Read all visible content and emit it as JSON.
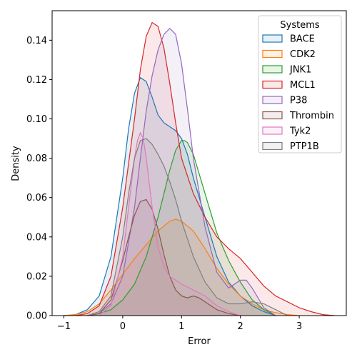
{
  "chart_data": {
    "type": "area",
    "xlabel": "Error",
    "ylabel": "Density",
    "xlim": [
      -1.2,
      3.8
    ],
    "ylim": [
      0,
      0.155
    ],
    "xticks": [
      -1,
      0,
      1,
      2,
      3
    ],
    "yticks": [
      0.0,
      0.02,
      0.04,
      0.06,
      0.08,
      0.1,
      0.12,
      0.14
    ],
    "ytick_labels": [
      "0.00",
      "0.02",
      "0.04",
      "0.06",
      "0.08",
      "0.10",
      "0.12",
      "0.14"
    ],
    "grid": false,
    "legend": {
      "title": "Systems",
      "placement": "top-right"
    },
    "series": [
      {
        "name": "BACE",
        "color": "#1f77b4",
        "x": [
          -1.0,
          -0.8,
          -0.6,
          -0.4,
          -0.2,
          0.0,
          0.1,
          0.2,
          0.3,
          0.4,
          0.5,
          0.6,
          0.7,
          0.8,
          0.9,
          1.0,
          1.1,
          1.2,
          1.4,
          1.6,
          1.8,
          2.0,
          2.2,
          2.4,
          2.6
        ],
        "y": [
          0.0,
          0.0005,
          0.003,
          0.01,
          0.03,
          0.07,
          0.095,
          0.113,
          0.121,
          0.119,
          0.111,
          0.102,
          0.098,
          0.096,
          0.094,
          0.09,
          0.082,
          0.07,
          0.05,
          0.03,
          0.017,
          0.01,
          0.005,
          0.002,
          0.0
        ]
      },
      {
        "name": "CDK2",
        "color": "#ff7f0e",
        "x": [
          -1.0,
          -0.8,
          -0.6,
          -0.4,
          -0.2,
          0.0,
          0.2,
          0.4,
          0.6,
          0.8,
          0.9,
          1.0,
          1.2,
          1.4,
          1.6,
          1.8,
          2.0,
          2.2,
          2.4,
          2.6,
          2.8,
          3.0
        ],
        "y": [
          0.0,
          0.0005,
          0.002,
          0.006,
          0.013,
          0.021,
          0.029,
          0.036,
          0.043,
          0.048,
          0.049,
          0.048,
          0.043,
          0.034,
          0.024,
          0.016,
          0.01,
          0.006,
          0.003,
          0.0015,
          0.0005,
          0.0
        ]
      },
      {
        "name": "JNK1",
        "color": "#2ca02c",
        "x": [
          -0.6,
          -0.4,
          -0.2,
          0.0,
          0.2,
          0.4,
          0.6,
          0.7,
          0.8,
          0.9,
          1.0,
          1.05,
          1.1,
          1.2,
          1.4,
          1.6,
          1.8,
          2.0,
          2.2,
          2.4,
          2.6
        ],
        "y": [
          0.0,
          0.001,
          0.003,
          0.008,
          0.016,
          0.03,
          0.05,
          0.062,
          0.074,
          0.084,
          0.089,
          0.089,
          0.088,
          0.082,
          0.062,
          0.042,
          0.028,
          0.017,
          0.008,
          0.003,
          0.0
        ]
      },
      {
        "name": "MCL1",
        "color": "#d62728",
        "x": [
          -0.8,
          -0.6,
          -0.4,
          -0.2,
          0.0,
          0.2,
          0.3,
          0.4,
          0.5,
          0.6,
          0.7,
          0.8,
          0.9,
          1.0,
          1.2,
          1.4,
          1.6,
          1.8,
          2.0,
          2.2,
          2.4,
          2.6,
          2.8,
          3.0,
          3.2,
          3.4,
          3.6
        ],
        "y": [
          0.0,
          0.001,
          0.005,
          0.02,
          0.055,
          0.1,
          0.125,
          0.142,
          0.149,
          0.147,
          0.136,
          0.118,
          0.098,
          0.08,
          0.062,
          0.05,
          0.04,
          0.034,
          0.029,
          0.022,
          0.015,
          0.01,
          0.007,
          0.004,
          0.002,
          0.0005,
          0.0
        ]
      },
      {
        "name": "P38",
        "color": "#9467bd",
        "x": [
          -0.6,
          -0.4,
          -0.2,
          0.0,
          0.2,
          0.3,
          0.4,
          0.5,
          0.6,
          0.7,
          0.8,
          0.9,
          1.0,
          1.1,
          1.2,
          1.4,
          1.6,
          1.8,
          2.0,
          2.1,
          2.2,
          2.4,
          2.6
        ],
        "y": [
          0.0,
          0.001,
          0.006,
          0.02,
          0.055,
          0.08,
          0.104,
          0.122,
          0.135,
          0.143,
          0.146,
          0.143,
          0.128,
          0.105,
          0.08,
          0.045,
          0.022,
          0.014,
          0.018,
          0.018,
          0.014,
          0.004,
          0.0
        ]
      },
      {
        "name": "Thrombin",
        "color": "#8c564b",
        "x": [
          -0.6,
          -0.4,
          -0.2,
          0.0,
          0.1,
          0.2,
          0.3,
          0.4,
          0.5,
          0.6,
          0.7,
          0.8,
          0.9,
          1.0,
          1.1,
          1.2,
          1.3,
          1.4,
          1.6,
          1.8,
          2.0
        ],
        "y": [
          0.0,
          0.001,
          0.008,
          0.028,
          0.04,
          0.051,
          0.058,
          0.059,
          0.054,
          0.044,
          0.031,
          0.02,
          0.013,
          0.01,
          0.009,
          0.01,
          0.009,
          0.007,
          0.003,
          0.001,
          0.0
        ]
      },
      {
        "name": "Tyk2",
        "color": "#e377c2",
        "x": [
          -0.4,
          -0.2,
          0.0,
          0.1,
          0.2,
          0.25,
          0.3,
          0.35,
          0.4,
          0.5,
          0.6,
          0.7,
          0.8,
          1.0,
          1.2,
          1.4,
          1.6,
          1.8,
          2.0
        ],
        "y": [
          0.0,
          0.005,
          0.03,
          0.055,
          0.08,
          0.089,
          0.093,
          0.09,
          0.08,
          0.055,
          0.035,
          0.025,
          0.02,
          0.016,
          0.013,
          0.01,
          0.005,
          0.002,
          0.0
        ]
      },
      {
        "name": "PTP1B",
        "color": "#7f7f7f",
        "x": [
          -0.6,
          -0.4,
          -0.2,
          0.0,
          0.1,
          0.2,
          0.3,
          0.4,
          0.5,
          0.6,
          0.7,
          0.8,
          0.9,
          1.0,
          1.2,
          1.4,
          1.6,
          1.8,
          2.0,
          2.2,
          2.4,
          2.6,
          2.8
        ],
        "y": [
          0.0,
          0.002,
          0.01,
          0.04,
          0.062,
          0.08,
          0.089,
          0.09,
          0.087,
          0.082,
          0.076,
          0.068,
          0.059,
          0.048,
          0.03,
          0.017,
          0.009,
          0.006,
          0.006,
          0.007,
          0.006,
          0.003,
          0.0
        ]
      }
    ]
  }
}
